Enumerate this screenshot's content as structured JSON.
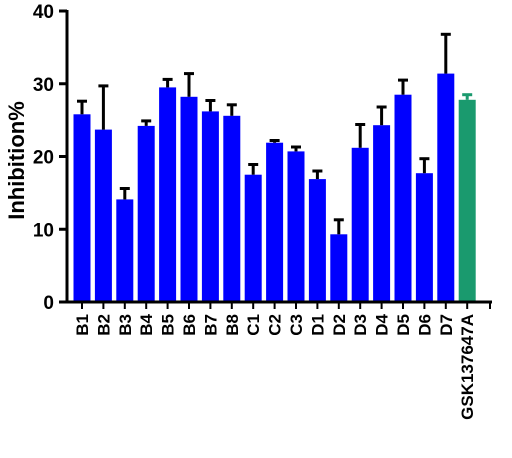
{
  "chart_data": {
    "type": "bar",
    "title": "",
    "xlabel": "",
    "ylabel": "Inhibition%",
    "ylim": [
      0,
      40
    ],
    "yticks": [
      0,
      10,
      20,
      30,
      40
    ],
    "grid": false,
    "categories": [
      "B1",
      "B2",
      "B3",
      "B4",
      "B5",
      "B6",
      "B7",
      "B8",
      "C1",
      "C2",
      "C3",
      "D1",
      "D2",
      "D3",
      "D4",
      "D5",
      "D6",
      "D7",
      "GSK137647A"
    ],
    "values": [
      25.8,
      23.7,
      14.1,
      24.2,
      29.5,
      28.2,
      26.2,
      25.6,
      17.5,
      21.9,
      20.7,
      16.9,
      9.3,
      21.2,
      24.3,
      28.5,
      17.7,
      31.4,
      27.8
    ],
    "errors": [
      1.8,
      6.0,
      1.5,
      0.7,
      1.1,
      3.2,
      1.5,
      1.5,
      1.4,
      0.3,
      0.6,
      1.1,
      2.0,
      3.2,
      2.5,
      2.0,
      2.0,
      5.4,
      0.7
    ],
    "colors": {
      "series": "#0000ff",
      "reference": "#1a9a6e",
      "axis": "#000000",
      "errorbar": "#000000"
    },
    "reference_category": "GSK137647A"
  }
}
